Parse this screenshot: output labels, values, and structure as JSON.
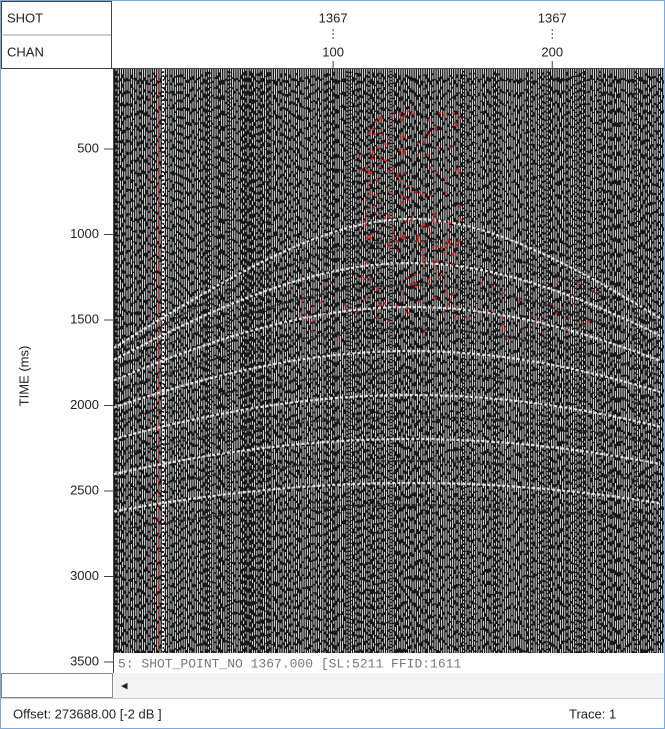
{
  "header": {
    "shot_label": "SHOT",
    "chan_label": "CHAN"
  },
  "top_axis": {
    "chan_range": [
      0,
      251
    ],
    "ticks": [
      {
        "shot": 1367,
        "chan": 100
      },
      {
        "shot": 1367,
        "chan": 200
      }
    ]
  },
  "time_axis": {
    "label": "TIME (ms)",
    "range": [
      0,
      3500
    ],
    "ticks": [
      500,
      1000,
      1500,
      2000,
      2500,
      3000,
      3500
    ]
  },
  "status_line": "5: SHOT_POINT_NO 1367.000 [SL:5211 FFID:1611",
  "scroll_arrow": "◂",
  "footer": {
    "offset": "Offset: 273688.00 [-2 dB ]",
    "trace": "Trace:  1"
  }
}
